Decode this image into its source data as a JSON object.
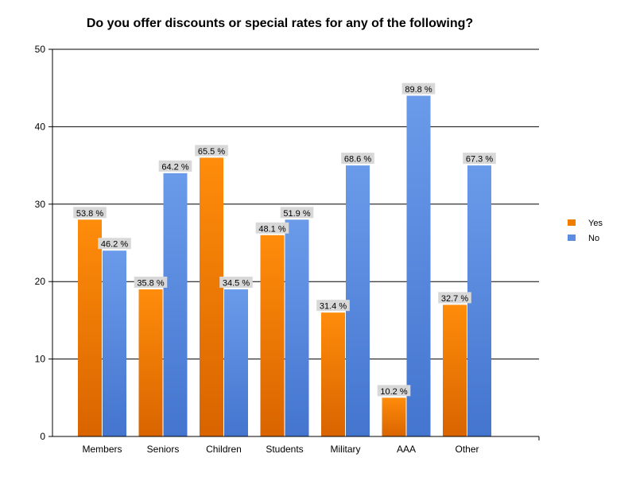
{
  "chart_data": {
    "type": "bar",
    "title": "Do you offer discounts or special rates for any of the following?",
    "xlabel": "",
    "ylabel": "",
    "ylim": [
      0,
      50
    ],
    "yticks": [
      0,
      10,
      20,
      30,
      40,
      50
    ],
    "grid": true,
    "legend_position": "right",
    "categories": [
      "Members",
      "Seniors",
      "Children",
      "Students",
      "Military",
      "AAA",
      "Other"
    ],
    "series": [
      {
        "name": "Yes",
        "color": "#F07D00",
        "values": [
          28,
          19,
          36,
          26,
          16,
          5,
          17
        ],
        "labels": [
          "53.8 %",
          "35.8 %",
          "65.5 %",
          "48.1 %",
          "31.4 %",
          "10.2 %",
          "32.7 %"
        ]
      },
      {
        "name": "No",
        "color": "#5B8DE3",
        "values": [
          24,
          34,
          19,
          28,
          35,
          44,
          35
        ],
        "labels": [
          "46.2 %",
          "64.2 %",
          "34.5 %",
          "51.9 %",
          "68.6 %",
          "89.8 %",
          "67.3 %"
        ]
      }
    ]
  }
}
